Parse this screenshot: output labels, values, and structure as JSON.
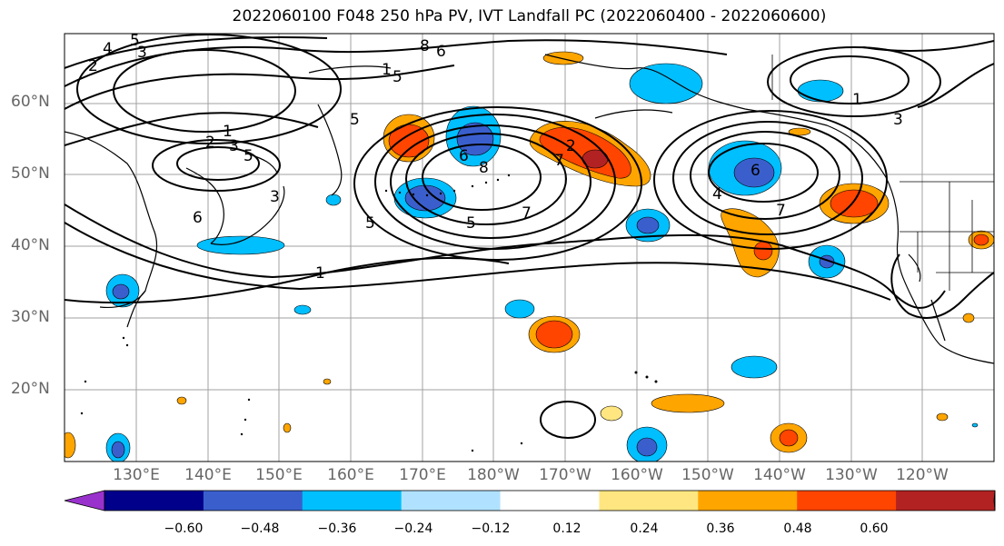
{
  "title": "2022060100 F048 250 hPa PV, IVT Landfall PC (2022060400 - 2022060600)",
  "lat_labels": [
    {
      "text": "60°N",
      "lat": 60
    },
    {
      "text": "50°N",
      "lat": 50
    },
    {
      "text": "40°N",
      "lat": 40
    },
    {
      "text": "30°N",
      "lat": 30
    },
    {
      "text": "20°N",
      "lat": 20
    }
  ],
  "lon_labels": [
    {
      "text": "130°E",
      "lon": 130
    },
    {
      "text": "140°E",
      "lon": 140
    },
    {
      "text": "150°E",
      "lon": 150
    },
    {
      "text": "160°E",
      "lon": 160
    },
    {
      "text": "170°E",
      "lon": 170
    },
    {
      "text": "180°W",
      "lon": 180
    },
    {
      "text": "170°W",
      "lon": 190
    },
    {
      "text": "160°W",
      "lon": 200
    },
    {
      "text": "150°W",
      "lon": 210
    },
    {
      "text": "140°W",
      "lon": 220
    },
    {
      "text": "130°W",
      "lon": 230
    },
    {
      "text": "120°W",
      "lon": 240
    }
  ],
  "contour_labels": [
    "5",
    "4",
    "2",
    "3",
    "8",
    "6",
    "1",
    "5",
    "1",
    "2",
    "3",
    "5",
    "3",
    "6",
    "5",
    "1",
    "8",
    "6",
    "5",
    "7",
    "2",
    "7",
    "5",
    "6",
    "3",
    "1",
    "4",
    "7"
  ],
  "colorbar": {
    "ticks": [
      "−0.60",
      "−0.48",
      "−0.36",
      "−0.24",
      "−0.12",
      "0.12",
      "0.24",
      "0.36",
      "0.48",
      "0.60"
    ],
    "colors": [
      "#9932cc",
      "#00008b",
      "#3a5fcd",
      "#00bfff",
      "#b0e2ff",
      "#ffffff",
      "#ffe680",
      "#ffa500",
      "#ff4500",
      "#b22222",
      "#ff88aa"
    ]
  }
}
